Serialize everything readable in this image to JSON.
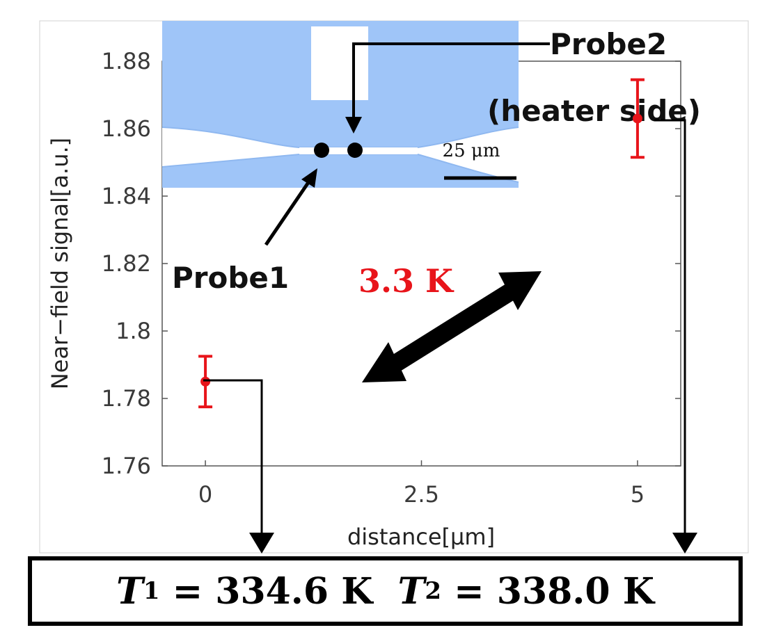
{
  "chart_data": {
    "type": "scatter",
    "x": [
      0,
      5
    ],
    "y": [
      1.785,
      1.863
    ],
    "error": [
      0.0075,
      0.0115
    ],
    "xlabel": "distance[μm]",
    "ylabel": "Near−field signal[a.u.]",
    "xticks": [
      "0",
      "2.5",
      "5"
    ],
    "xtick_values": [
      0,
      2.5,
      5
    ],
    "yticks": [
      "1.76",
      "1.78",
      "1.8",
      "1.82",
      "1.84",
      "1.86",
      "1.88"
    ],
    "ytick_values": [
      1.76,
      1.78,
      1.8,
      1.82,
      1.84,
      1.86,
      1.88
    ],
    "xlim": [
      -0.5,
      5.5
    ],
    "ylim": [
      1.76,
      1.88
    ],
    "grid": false,
    "marker_color": "#e8141a"
  },
  "annotations": {
    "probe1": "Probe1",
    "probe2_line1": "Probe2",
    "probe2_line2": "(heater side)",
    "delta": "3.3 K",
    "scale_bar": "25 μm"
  },
  "results": {
    "t1_symbol": "T",
    "t1_sub": "1",
    "t1_value": " = 334.6 K  ",
    "t2_symbol": "T",
    "t2_sub": "2",
    "t2_value": " = 338.0 K"
  },
  "colors": {
    "inset_blue": "#9fc5f8",
    "inset_blue_dark": "#8fb8f0",
    "accent_red": "#e8141a"
  }
}
